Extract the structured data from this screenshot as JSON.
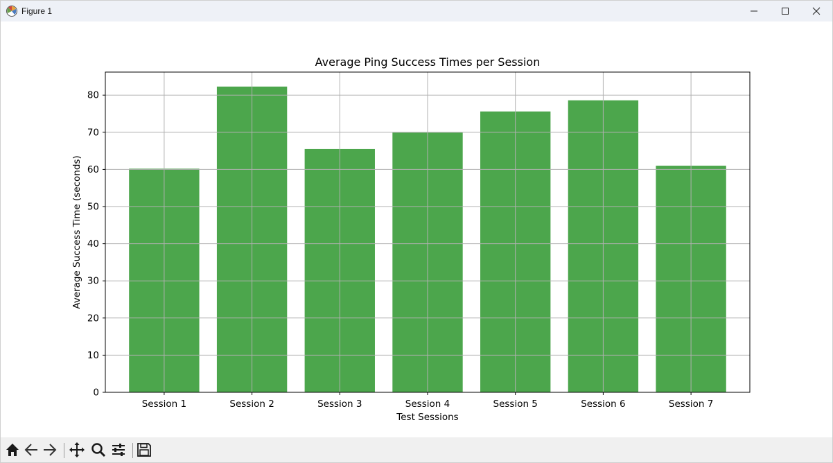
{
  "window": {
    "title": "Figure 1"
  },
  "icons": {
    "app": "matplotlib-figure-icon",
    "minimize": "minimize-icon",
    "maximize": "maximize-icon",
    "close": "close-icon"
  },
  "toolbar": {
    "tools": [
      "home-icon",
      "back-arrow-icon",
      "forward-arrow-icon",
      "pan-icon",
      "zoom-icon",
      "configure-subplots-icon",
      "save-icon"
    ]
  },
  "colors": {
    "bar": "#4ca64c",
    "grid": "#b0b0b0",
    "titlebar": "#eef1f7",
    "toolbar": "#f0f0f0"
  },
  "chart_data": {
    "type": "bar",
    "title": "Average Ping Success Times per Session",
    "xlabel": "Test Sessions",
    "ylabel": "Average Success Time (seconds)",
    "categories": [
      "Session 1",
      "Session 2",
      "Session 3",
      "Session 4",
      "Session 5",
      "Session 6",
      "Session 7"
    ],
    "values": [
      60.2,
      82.3,
      65.5,
      70.0,
      75.6,
      78.6,
      61.0
    ],
    "ylim": [
      0,
      86.2
    ],
    "yticks": [
      0,
      10,
      20,
      30,
      40,
      50,
      60,
      70,
      80
    ],
    "grid": true,
    "legend": "none"
  }
}
